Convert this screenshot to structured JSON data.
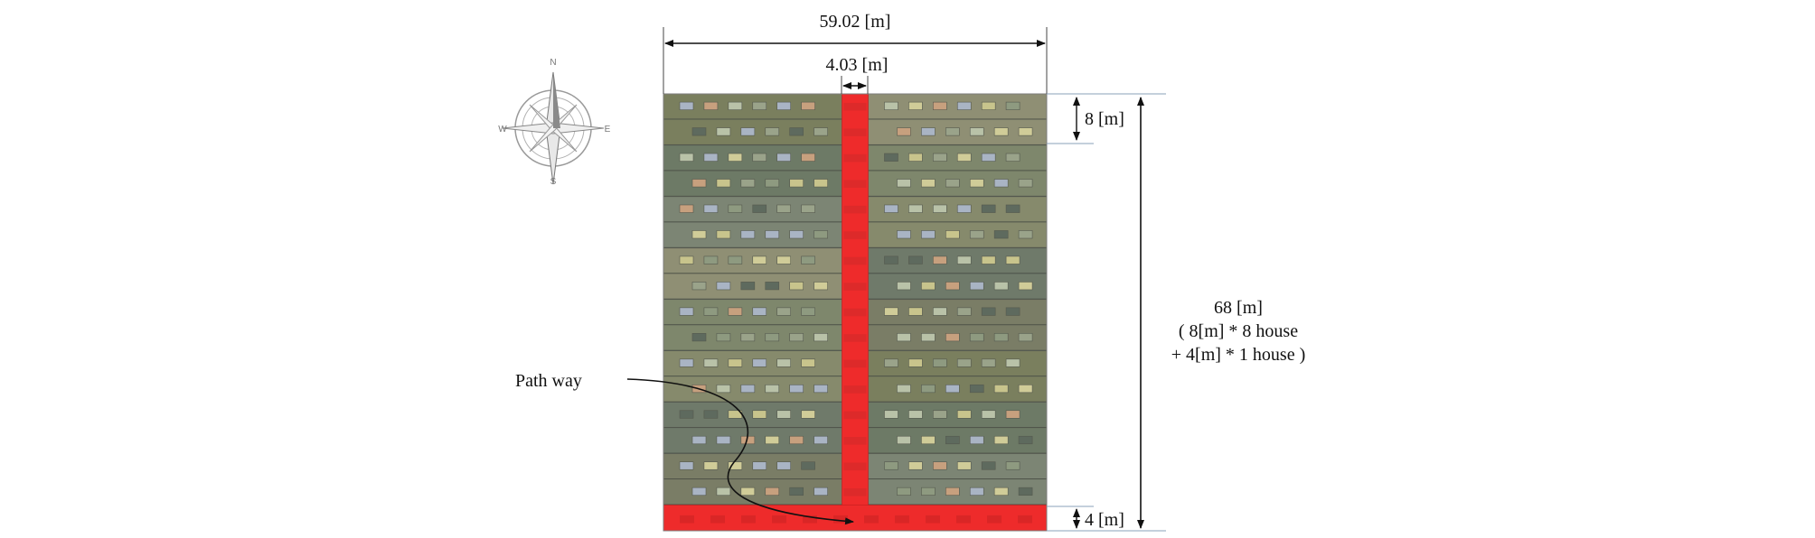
{
  "dimensions": {
    "total_width": "59.02 [m]",
    "path_width": "4.03 [m]",
    "house_depth": "8 [m]",
    "end_strip_depth": "4 [m]",
    "total_length": {
      "line1": "68 [m]",
      "line2": "( 8[m] * 8 house",
      "line3": "+ 4[m] * 1 house )"
    }
  },
  "labels": {
    "path_way": "Path way"
  },
  "compass": {
    "north": "N",
    "south": "S",
    "east": "E",
    "west": "W"
  },
  "layout_model": {
    "total_width_m": 59.02,
    "path_width_m": 4.03,
    "house_depth_m": 8,
    "house_count": 8,
    "end_strip_depth_m": 4,
    "total_length_m": 68,
    "rows_per_house": 2
  },
  "colors": {
    "path": "#ee2b2b",
    "house_palette": [
      "#7a7f5e",
      "#6d7a66",
      "#7c8574",
      "#8f8f74",
      "#7e876c",
      "#868a6c",
      "#6f7a6a",
      "#7a7d66"
    ],
    "window_palette": [
      "#b9c2a8",
      "#9aa38a",
      "#c8c48c",
      "#a9b4c4",
      "#c7a07e",
      "#5e6a5e",
      "#8e9a80",
      "#d0cc98"
    ]
  }
}
